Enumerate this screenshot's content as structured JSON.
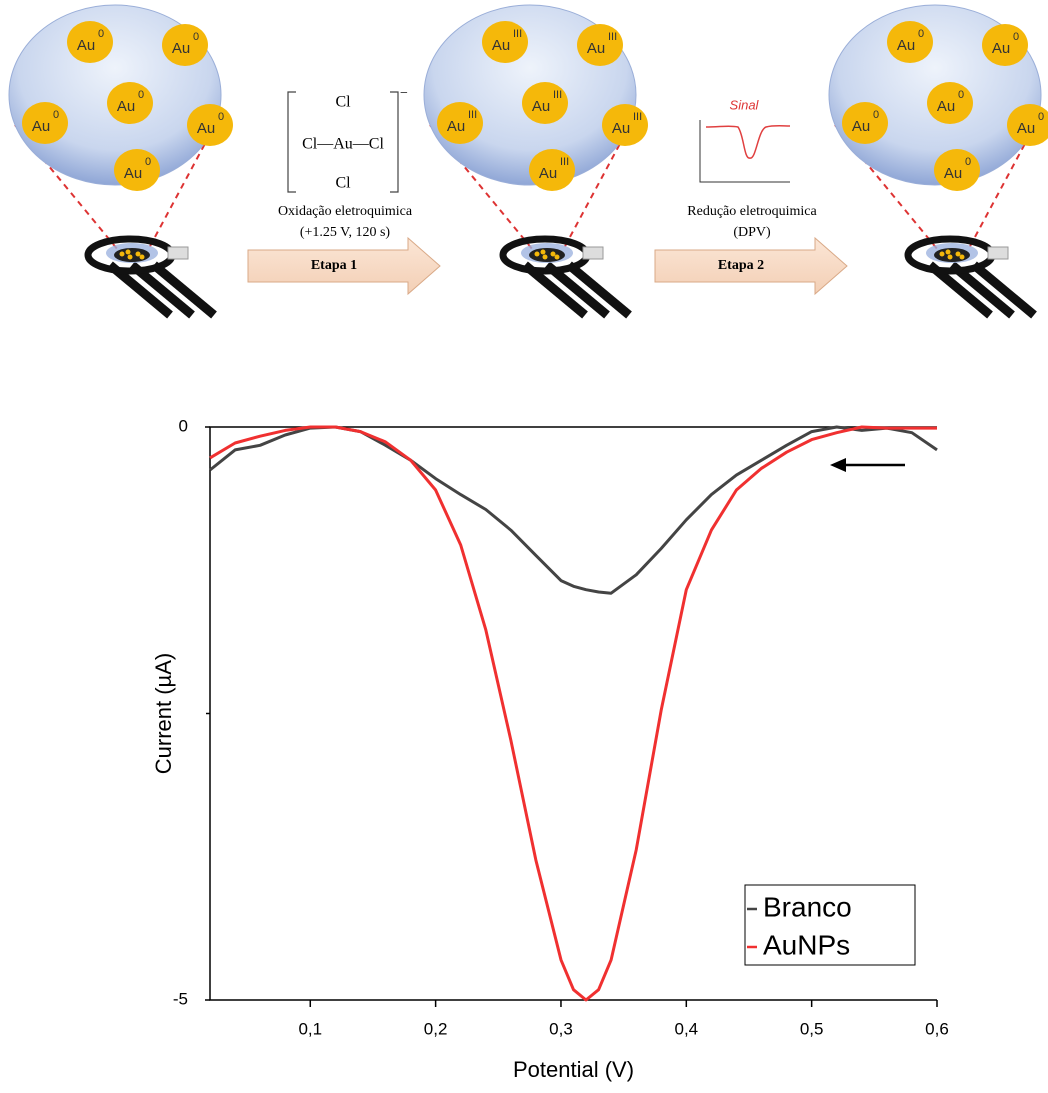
{
  "diagram": {
    "panels": [
      {
        "particles": [
          {
            "symbol": "Au",
            "charge": "0"
          },
          {
            "symbol": "Au",
            "charge": "0"
          },
          {
            "symbol": "Au",
            "charge": "0"
          },
          {
            "symbol": "Au",
            "charge": "0"
          },
          {
            "symbol": "Au",
            "charge": "0"
          },
          {
            "symbol": "Au",
            "charge": "0"
          }
        ]
      },
      {
        "particles": [
          {
            "symbol": "Au",
            "charge": "III"
          },
          {
            "symbol": "Au",
            "charge": "III"
          },
          {
            "symbol": "Au",
            "charge": "III"
          },
          {
            "symbol": "Au",
            "charge": "III"
          },
          {
            "symbol": "Au",
            "charge": "III"
          },
          {
            "symbol": "Au",
            "charge": "III"
          }
        ]
      },
      {
        "particles": [
          {
            "symbol": "Au",
            "charge": "0"
          },
          {
            "symbol": "Au",
            "charge": "0"
          },
          {
            "symbol": "Au",
            "charge": "0"
          },
          {
            "symbol": "Au",
            "charge": "0"
          },
          {
            "symbol": "Au",
            "charge": "0"
          },
          {
            "symbol": "Au",
            "charge": "0"
          }
        ]
      }
    ],
    "complex": {
      "top": "Cl",
      "middle": "Cl—Au—Cl",
      "bottom": "Cl",
      "charge": "−"
    },
    "inset_title": "Sinal",
    "steps": [
      {
        "lines": [
          "Oxidação eletroquimica",
          "(+1.25 V, 120 s)"
        ],
        "label": "Etapa 1"
      },
      {
        "lines": [
          "Redução eletroquimica",
          "(DPV)"
        ],
        "label": "Etapa 2"
      }
    ]
  },
  "chart_data": {
    "type": "line",
    "xlabel": "Potential (V)",
    "ylabel": "Current (µA)",
    "x": [
      0.02,
      0.04,
      0.06,
      0.08,
      0.1,
      0.12,
      0.14,
      0.16,
      0.18,
      0.2,
      0.22,
      0.24,
      0.26,
      0.28,
      0.3,
      0.31,
      0.32,
      0.33,
      0.34,
      0.36,
      0.38,
      0.4,
      0.42,
      0.44,
      0.46,
      0.48,
      0.5,
      0.52,
      0.54,
      0.56,
      0.58,
      0.6
    ],
    "series": [
      {
        "name": "Branco",
        "color": "#444444",
        "values": [
          -0.375,
          -0.2,
          -0.16,
          -0.07,
          -0.01,
          0,
          -0.04,
          -0.16,
          -0.29,
          -0.45,
          -0.59,
          -0.72,
          -0.9,
          -1.12,
          -1.34,
          -1.39,
          -1.42,
          -1.44,
          -1.45,
          -1.29,
          -1.06,
          -0.81,
          -0.59,
          -0.42,
          -0.29,
          -0.16,
          -0.04,
          0,
          -0.03,
          -0.01,
          -0.05,
          -0.2
        ]
      },
      {
        "name": "AuNPs",
        "color": "#f03030",
        "values": [
          -0.27,
          -0.14,
          -0.08,
          -0.03,
          0,
          0,
          -0.04,
          -0.13,
          -0.29,
          -0.55,
          -1.03,
          -1.77,
          -2.73,
          -3.78,
          -4.65,
          -4.91,
          -5.0,
          -4.91,
          -4.65,
          -3.69,
          -2.47,
          -1.42,
          -0.9,
          -0.55,
          -0.36,
          -0.22,
          -0.11,
          -0.05,
          0,
          -0.01,
          -0.01,
          -0.01
        ]
      }
    ],
    "xlim": [
      0.02,
      0.6
    ],
    "ylim": [
      -5,
      0
    ],
    "xticks": [
      {
        "value": 0.1,
        "label": "0,1"
      },
      {
        "value": 0.2,
        "label": "0,2"
      },
      {
        "value": 0.3,
        "label": "0,3"
      },
      {
        "value": 0.4,
        "label": "0,4"
      },
      {
        "value": 0.5,
        "label": "0,5"
      },
      {
        "value": 0.6,
        "label": "0,6"
      }
    ],
    "yticks": [
      -5,
      0
    ],
    "minor_yticks": [
      -2.5
    ],
    "legend": "lower right"
  }
}
